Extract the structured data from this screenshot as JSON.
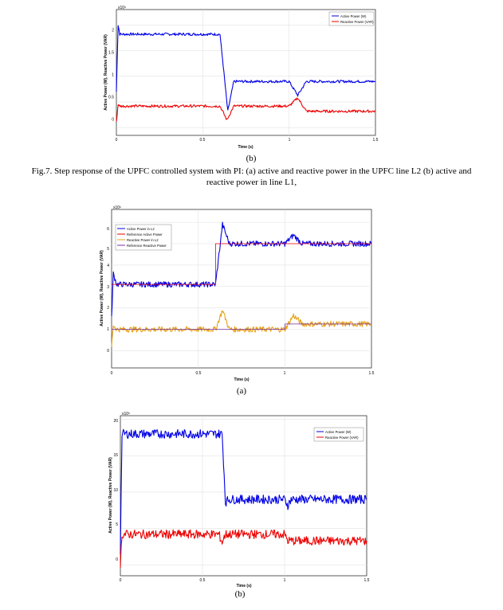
{
  "figures": [
    {
      "sublabel": "(b)",
      "exp": "x10⁶",
      "ylabel": "Active Power (W), Reactive Power (VAR)",
      "xlabel": "Time (s)",
      "xticks": [
        "0",
        "0.5",
        "1",
        "1.5"
      ],
      "yticks": [
        "0",
        "0.5",
        "1",
        "1.5",
        "2"
      ],
      "legend": [
        "Active Power (W)",
        "Reactive Power (VAR)"
      ],
      "colors": [
        "#0000e6",
        "#ee0000"
      ]
    },
    {
      "sublabel": "(a)",
      "exp": "x10⁶",
      "ylabel": "Active Power (W), Reactive Power (VAR)",
      "xlabel": "Time (s)",
      "xticks": [
        "0",
        "0.5",
        "1",
        "1.5"
      ],
      "yticks": [
        "0",
        "1",
        "2",
        "3",
        "4",
        "5",
        "6"
      ],
      "legend": [
        "Active Power in L2",
        "Reference Active Power",
        "Reactive Power in L2",
        "Reference Reactive Power"
      ],
      "colors": [
        "#0000e6",
        "#ee0000",
        "#e6a117",
        "#7a2fa0"
      ]
    },
    {
      "sublabel": "(b)",
      "exp": "x10⁵",
      "ylabel": "Active Power (W), Reactive Power (VAR)",
      "xlabel": "Time (s)",
      "xticks": [
        "0",
        "0.5",
        "1",
        "1.5"
      ],
      "yticks": [
        "0",
        "5",
        "10",
        "15",
        "20"
      ],
      "legend": [
        "Active Power (W)",
        "Reactive Power (VAR)"
      ],
      "colors": [
        "#0000e6",
        "#ee0000"
      ]
    }
  ],
  "caption": {
    "line1": "Fig.7. Step response of the UPFC controlled system with PI: (a) active and reactive power in the UPFC line L2 (b) active and",
    "line2": "reactive power in line L1,"
  },
  "chart_data": [
    {
      "type": "line",
      "xlabel": "Time (s)",
      "ylabel": "Active Power (W), Reactive Power (VAR)",
      "xlim": [
        0,
        1.5
      ],
      "ylim": [
        -0.15,
        2.3
      ],
      "grid": true,
      "legend_position": "top-right",
      "series": [
        {
          "name": "Active Power (W)",
          "color": "#0000e6",
          "band": 0.03,
          "points": [
            [
              0,
              0.7
            ],
            [
              0.01,
              2.0
            ],
            [
              0.02,
              1.82
            ],
            [
              0.6,
              1.82
            ],
            [
              0.645,
              0.32
            ],
            [
              0.68,
              0.9
            ],
            [
              1.0,
              0.9
            ],
            [
              1.05,
              0.63
            ],
            [
              1.1,
              0.9
            ],
            [
              1.5,
              0.9
            ]
          ]
        },
        {
          "name": "Reactive Power (VAR)",
          "color": "#ee0000",
          "band": 0.03,
          "points": [
            [
              0,
              0.1
            ],
            [
              0.01,
              0.45
            ],
            [
              0.02,
              0.42
            ],
            [
              0.6,
              0.42
            ],
            [
              0.64,
              0.15
            ],
            [
              0.68,
              0.42
            ],
            [
              1.0,
              0.42
            ],
            [
              1.05,
              0.58
            ],
            [
              1.1,
              0.32
            ],
            [
              1.5,
              0.32
            ]
          ]
        }
      ]
    },
    {
      "type": "line",
      "xlabel": "Time (s)",
      "ylabel": "Active Power (W), Reactive Power (VAR)",
      "xlim": [
        0,
        1.5
      ],
      "ylim": [
        -0.8,
        6.6
      ],
      "grid": true,
      "legend_position": "top-left",
      "series": [
        {
          "name": "Active Power in L2",
          "color": "#0000e6",
          "band": 0.05,
          "points": [
            [
              0,
              1.5
            ],
            [
              0.01,
              3.6
            ],
            [
              0.03,
              3.1
            ],
            [
              0.6,
              3.1
            ],
            [
              0.64,
              5.9
            ],
            [
              0.68,
              5.0
            ],
            [
              1.0,
              5.0
            ],
            [
              1.05,
              5.4
            ],
            [
              1.1,
              5.0
            ],
            [
              1.5,
              5.0
            ]
          ]
        },
        {
          "name": "Reference Active Power",
          "color": "#ee0000",
          "band": 0,
          "points": [
            [
              0,
              3.1
            ],
            [
              0.6,
              3.1
            ],
            [
              0.6,
              5.0
            ],
            [
              1.5,
              5.0
            ]
          ]
        },
        {
          "name": "Reactive Power in L2",
          "color": "#e6a117",
          "band": 0.05,
          "points": [
            [
              0,
              0.2
            ],
            [
              0.01,
              1.2
            ],
            [
              0.03,
              1.0
            ],
            [
              0.6,
              1.0
            ],
            [
              0.64,
              1.9
            ],
            [
              0.68,
              1.0
            ],
            [
              1.0,
              1.0
            ],
            [
              1.05,
              1.65
            ],
            [
              1.1,
              1.25
            ],
            [
              1.5,
              1.25
            ]
          ]
        },
        {
          "name": "Reference Reactive Power",
          "color": "#7a2fa0",
          "band": 0,
          "points": [
            [
              0,
              1.0
            ],
            [
              1.0,
              1.0
            ],
            [
              1.0,
              1.25
            ],
            [
              1.5,
              1.25
            ]
          ]
        }
      ]
    },
    {
      "type": "line",
      "xlabel": "Time (s)",
      "ylabel": "Active Power (W), Reactive Power (VAR)",
      "xlim": [
        0,
        1.5
      ],
      "ylim": [
        -1.5,
        20.5
      ],
      "grid": true,
      "legend_position": "top-right",
      "series": [
        {
          "name": "Active Power (W)",
          "color": "#0000e6",
          "band": 0.08,
          "points": [
            [
              0,
              2
            ],
            [
              0.01,
              18.0
            ],
            [
              0.62,
              18.0
            ],
            [
              0.64,
              8.6
            ],
            [
              0.66,
              9.0
            ],
            [
              1.0,
              9.0
            ],
            [
              1.02,
              8.2
            ],
            [
              1.04,
              9.0
            ],
            [
              1.5,
              9.0
            ]
          ]
        },
        {
          "name": "Reactive Power (VAR)",
          "color": "#ee0000",
          "band": 0.08,
          "points": [
            [
              0,
              0.2
            ],
            [
              0.01,
              4.2
            ],
            [
              0.6,
              4.2
            ],
            [
              0.62,
              3.1
            ],
            [
              0.64,
              4.2
            ],
            [
              1.0,
              4.2
            ],
            [
              1.02,
              3.3
            ],
            [
              1.5,
              3.3
            ]
          ]
        }
      ]
    }
  ]
}
